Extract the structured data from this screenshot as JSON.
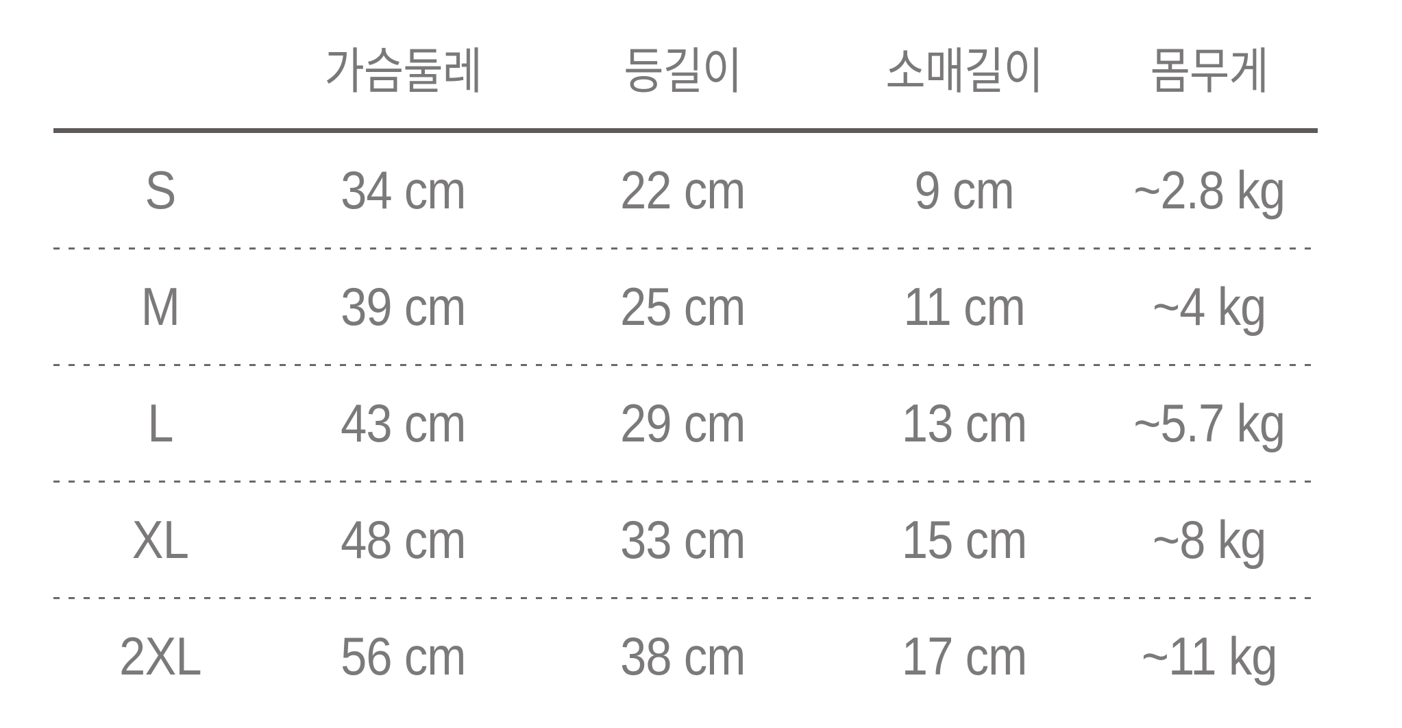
{
  "chart_data": {
    "type": "table",
    "title": "",
    "columns": [
      "",
      "가슴둘레",
      "등길이",
      "소매길이",
      "몸무게"
    ],
    "column_meanings": [
      "size",
      "chest-circumference",
      "back-length",
      "sleeve-length",
      "weight"
    ],
    "rows": [
      [
        "S",
        "34 cm",
        "22 cm",
        "9 cm",
        "~2.8 kg"
      ],
      [
        "M",
        "39 cm",
        "25 cm",
        "11 cm",
        "~4 kg"
      ],
      [
        "L",
        "43 cm",
        "29 cm",
        "13 cm",
        "~5.7 kg"
      ],
      [
        "XL",
        "48 cm",
        "33 cm",
        "15 cm",
        "~8 kg"
      ],
      [
        "2XL",
        "56 cm",
        "38 cm",
        "17 cm",
        "~11 kg"
      ]
    ]
  },
  "colors": {
    "background": "#ffffff",
    "text": "#7b7979",
    "header_rule": "#5d5959",
    "row_divider": "#6b6969"
  }
}
